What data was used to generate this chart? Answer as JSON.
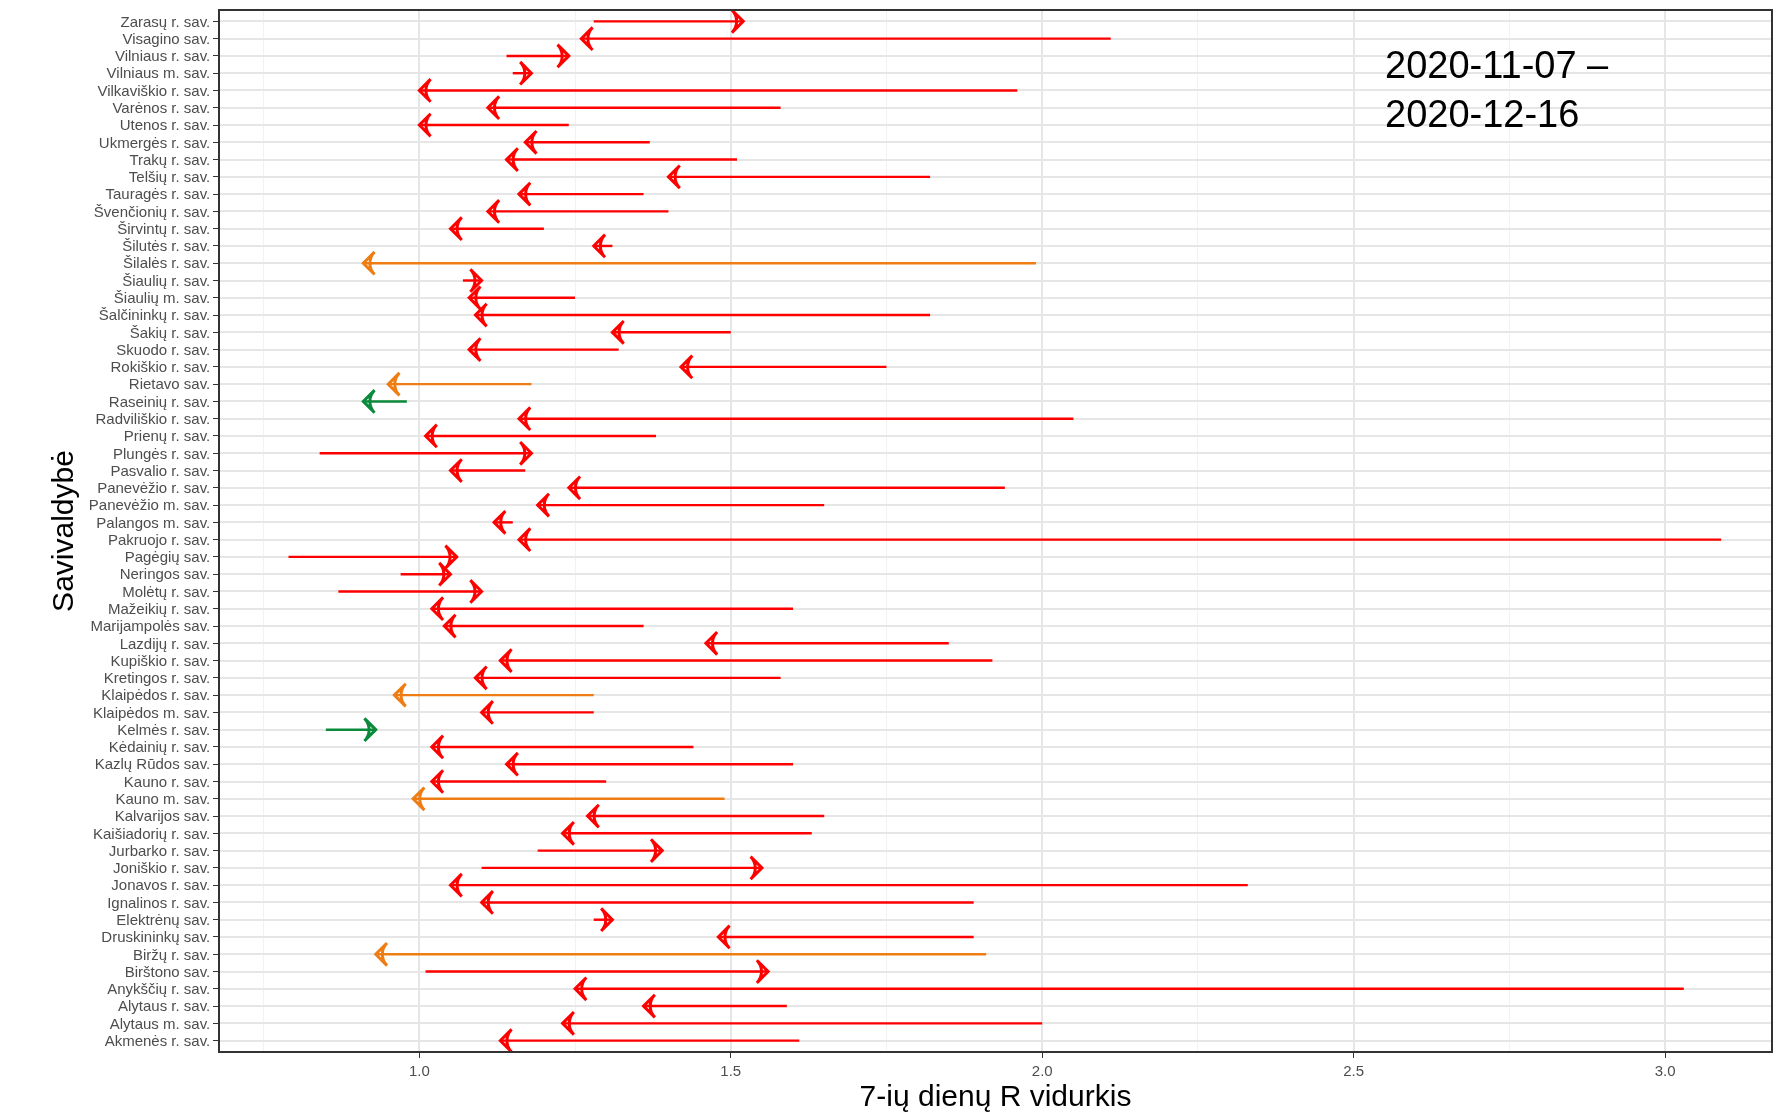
{
  "chart_data": {
    "type": "bar",
    "orientation": "horizontal",
    "xlabel": "7-ių dienų R vidurkis",
    "ylabel": "Savivaldybė",
    "annotations": [
      "2020-11-07 –\n2020-12-16"
    ],
    "categories": [
      "Zarasų r. sav.",
      "Visagino sav.",
      "Vilniaus r. sav.",
      "Vilniaus m. sav.",
      "Vilkaviškio r. sav.",
      "Varėnos r. sav.",
      "Utenos r. sav.",
      "Ukmergės r. sav.",
      "Trakų r. sav.",
      "Telšių r. sav.",
      "Tauragės r. sav.",
      "Švenčionių r. sav.",
      "Širvintų r. sav.",
      "Šilutės r. sav.",
      "Šilalės r. sav.",
      "Šiaulių r. sav.",
      "Šiaulių m. sav.",
      "Šalčininkų r. sav.",
      "Šakių r. sav.",
      "Skuodo r. sav.",
      "Rokiškio r. sav.",
      "Rietavo sav.",
      "Raseinių r. sav.",
      "Radviliškio r. sav.",
      "Prienų r. sav.",
      "Plungės r. sav.",
      "Pasvalio r. sav.",
      "Panevėžio r. sav.",
      "Panevėžio m. sav.",
      "Palangos m. sav.",
      "Pakruojo r. sav.",
      "Pagėgių sav.",
      "Neringos sav.",
      "Molėtų r. sav.",
      "Mažeikių r. sav.",
      "Marijampolės sav.",
      "Lazdijų r. sav.",
      "Kupiškio r. sav.",
      "Kretingos r. sav.",
      "Klaipėdos r. sav.",
      "Klaipėdos m. sav.",
      "Kelmės r. sav.",
      "Kėdainių r. sav.",
      "Kazlų Rūdos sav.",
      "Kauno r. sav.",
      "Kauno m. sav.",
      "Kalvarijos sav.",
      "Kaišiadorių r. sav.",
      "Jurbarko r. sav.",
      "Joniškio r. sav.",
      "Jonavos r. sav.",
      "Ignalinos r. sav.",
      "Elektrėnų sav.",
      "Druskininkų sav.",
      "Biržų r. sav.",
      "Birštono sav.",
      "Anykščių r. sav.",
      "Alytaus r. sav.",
      "Alytaus m. sav.",
      "Akmenės r. sav."
    ],
    "base": [
      1.28,
      2.11,
      1.14,
      1.15,
      1.96,
      1.58,
      1.24,
      1.37,
      1.51,
      1.82,
      1.36,
      1.4,
      1.2,
      1.31,
      1.99,
      1.07,
      1.25,
      1.82,
      1.5,
      1.32,
      1.75,
      1.18,
      0.98,
      2.05,
      1.38,
      0.84,
      1.17,
      1.94,
      1.65,
      1.15,
      3.09,
      0.79,
      0.97,
      0.87,
      1.6,
      1.36,
      1.85,
      1.92,
      1.58,
      1.28,
      1.28,
      0.85,
      1.44,
      1.6,
      1.3,
      1.49,
      1.65,
      1.63,
      1.19,
      1.1,
      2.33,
      1.89,
      1.28,
      1.89,
      1.91,
      1.01,
      3.03,
      1.59,
      2.0,
      1.61
    ],
    "values": [
      0.24,
      -0.85,
      0.1,
      0.03,
      -0.96,
      -0.47,
      -0.24,
      -0.2,
      -0.37,
      -0.42,
      -0.2,
      -0.29,
      -0.15,
      -0.03,
      -1.08,
      0.03,
      -0.17,
      -0.73,
      -0.19,
      -0.24,
      -0.33,
      -0.23,
      -0.07,
      -0.89,
      -0.37,
      0.34,
      -0.12,
      -0.7,
      -0.46,
      -0.03,
      -1.93,
      0.27,
      0.08,
      0.23,
      -0.58,
      -0.32,
      -0.39,
      -0.79,
      -0.49,
      -0.32,
      -0.18,
      0.08,
      -0.42,
      -0.46,
      -0.28,
      -0.5,
      -0.38,
      -0.4,
      0.2,
      0.45,
      -1.28,
      -0.79,
      0.03,
      -0.41,
      -0.98,
      0.55,
      -1.78,
      -0.23,
      -0.77,
      -0.48
    ],
    "colors": [
      "#ff0000",
      "#ff0000",
      "#ff0000",
      "#ff0000",
      "#ff0000",
      "#ff0000",
      "#ff0000",
      "#ff0000",
      "#ff0000",
      "#ff0000",
      "#ff0000",
      "#ff0000",
      "#ff0000",
      "#ff0000",
      "#ee7d13",
      "#ff0000",
      "#ff0000",
      "#ff0000",
      "#ff0000",
      "#ff0000",
      "#ff0000",
      "#ee7d13",
      "#0a8a3a",
      "#ff0000",
      "#ff0000",
      "#ff0000",
      "#ff0000",
      "#ff0000",
      "#ff0000",
      "#ff0000",
      "#ff0000",
      "#ff0000",
      "#ff0000",
      "#ff0000",
      "#ff0000",
      "#ff0000",
      "#ff0000",
      "#ff0000",
      "#ff0000",
      "#ee7d13",
      "#ff0000",
      "#0a8a3a",
      "#ff0000",
      "#ff0000",
      "#ff0000",
      "#ee7d13",
      "#ff0000",
      "#ff0000",
      "#ff0000",
      "#ff0000",
      "#ff0000",
      "#ff0000",
      "#ff0000",
      "#ff0000",
      "#ee7d13",
      "#ff0000",
      "#ff0000",
      "#ff0000",
      "#ff0000",
      "#ff0000"
    ],
    "xlim": [
      0.68,
      3.17
    ],
    "xticks": [
      {
        "value": 1.0,
        "label": "1.0"
      },
      {
        "value": 1.5,
        "label": "1.5"
      },
      {
        "value": 2.0,
        "label": "2.0"
      },
      {
        "value": 2.5,
        "label": "2.5"
      },
      {
        "value": 3.0,
        "label": "3.0"
      }
    ],
    "grid": true
  }
}
